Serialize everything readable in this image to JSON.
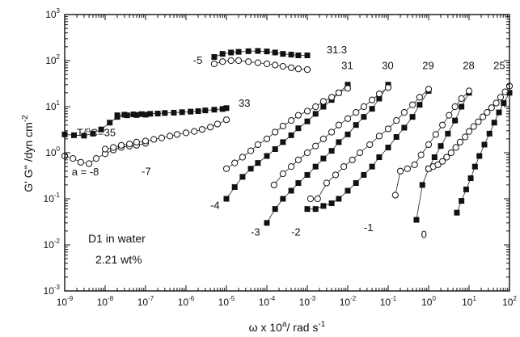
{
  "chart_data": {
    "type": "scatter",
    "x_scale": "log",
    "y_scale": "log",
    "xlim": [
      1e-09,
      100
    ],
    "ylim": [
      0.001,
      1000
    ],
    "xlabel": {
      "base": "ω x 10",
      "sup": "a",
      "rest": "/ rad s",
      "rest_sup": "-1"
    },
    "ylabel": {
      "main": "G' G'' /dyn cm",
      "sup": "-2"
    },
    "x_tick_exponents": [
      "-9",
      "-8",
      "-7",
      "-6",
      "-5",
      "-4",
      "-3",
      "-2",
      "-1",
      "0",
      "1",
      "2"
    ],
    "y_tick_exponents": [
      "-3",
      "-2",
      "-1",
      "0",
      "1",
      "2",
      "3"
    ],
    "tick_base": "10",
    "inset_lines": [
      "D1 in water",
      "2.21 wt%"
    ],
    "marker_styles": {
      "G_prime": "filled-square",
      "G_double_prime": "open-circle"
    },
    "annotations": {
      "temperatures": [
        {
          "text": "T/",
          "sup": "o",
          "rest": "C=35",
          "x": 2e-09,
          "y": 2.3
        },
        {
          "text": "33",
          "x": 2e-05,
          "y": 10
        },
        {
          "text": "31.3",
          "x": 0.003,
          "y": 145
        },
        {
          "text": "31",
          "x": 0.007,
          "y": 65
        },
        {
          "text": "30",
          "x": 0.07,
          "y": 65
        },
        {
          "text": "29",
          "x": 0.7,
          "y": 65
        },
        {
          "text": "28",
          "x": 7,
          "y": 65
        },
        {
          "text": "25",
          "x": 40,
          "y": 65
        }
      ],
      "shift_factors": [
        {
          "text": "a = -8",
          "x": 1.5e-09,
          "y": 0.32
        },
        {
          "text": "-7",
          "x": 8e-08,
          "y": 0.33
        },
        {
          "text": "-5",
          "x": 1.5e-06,
          "y": 85
        },
        {
          "text": "-4",
          "x": 4e-06,
          "y": 0.06
        },
        {
          "text": "-3",
          "x": 4e-05,
          "y": 0.016
        },
        {
          "text": "-2",
          "x": 0.0004,
          "y": 0.016
        },
        {
          "text": "-1",
          "x": 0.025,
          "y": 0.02
        },
        {
          "text": "0",
          "x": 0.65,
          "y": 0.014
        }
      ]
    },
    "series": [
      {
        "name": "",
        "temperature": "35",
        "modulus": "G'",
        "x": [
          1e-09,
          1.7e-09,
          3e-09,
          5e-09,
          8e-09,
          1.3e-08,
          2e-08,
          3.5e-08,
          6e-08,
          1e-07
        ],
        "y": [
          2.5,
          2.4,
          2.35,
          2.6,
          3.2,
          4.5,
          6.0,
          6.5,
          6.6,
          6.7
        ]
      },
      {
        "name": "",
        "temperature": "35",
        "modulus": "G''",
        "x": [
          1e-09,
          1.6e-09,
          2.5e-09,
          4e-09,
          6e-09,
          1e-08,
          1.6e-08,
          2.5e-08,
          4e-08,
          6e-08,
          1e-07
        ],
        "y": [
          0.85,
          0.75,
          0.62,
          0.58,
          0.75,
          0.95,
          1.15,
          1.3,
          1.4,
          1.45,
          1.6
        ]
      },
      {
        "name": "",
        "temperature": "33",
        "modulus": "G'",
        "x": [
          2e-08,
          3e-08,
          5e-08,
          8e-08,
          1.3e-07,
          2e-07,
          3e-07,
          5e-07,
          8e-07,
          1.3e-06,
          2e-06,
          3e-06,
          5e-06,
          8e-06,
          1e-05
        ],
        "y": [
          6.5,
          6.7,
          6.8,
          6.9,
          7.0,
          7.1,
          7.3,
          7.4,
          7.6,
          7.8,
          8.0,
          8.3,
          8.6,
          8.9,
          9.3
        ]
      },
      {
        "name": "",
        "temperature": "33",
        "modulus": "G''",
        "x": [
          1e-08,
          1.6e-08,
          2.5e-08,
          4e-08,
          6e-08,
          1e-07,
          1.6e-07,
          2.5e-07,
          4e-07,
          6e-07,
          1e-06,
          1.6e-06,
          2.5e-06,
          4e-06,
          6e-06,
          1e-05
        ],
        "y": [
          1.2,
          1.3,
          1.45,
          1.55,
          1.7,
          1.8,
          1.95,
          2.1,
          2.3,
          2.5,
          2.7,
          2.9,
          3.2,
          3.6,
          4.2,
          5.2
        ]
      },
      {
        "name": "",
        "temperature": "31.3",
        "modulus": "G'",
        "x": [
          5e-06,
          8e-06,
          1.3e-05,
          2e-05,
          3.5e-05,
          6e-05,
          0.0001,
          0.00016,
          0.00025,
          0.0004,
          0.0006,
          0.001
        ],
        "y": [
          120,
          140,
          150,
          155,
          160,
          162,
          158,
          150,
          140,
          135,
          130,
          130
        ]
      },
      {
        "name": "",
        "temperature": "31.3",
        "modulus": "G''",
        "x": [
          5e-06,
          8e-06,
          1.3e-05,
          2e-05,
          3.5e-05,
          6e-05,
          0.0001,
          0.00016,
          0.00025,
          0.0004,
          0.0006,
          0.001
        ],
        "y": [
          85,
          95,
          100,
          100,
          95,
          90,
          85,
          80,
          75,
          70,
          66,
          64
        ]
      },
      {
        "name": "",
        "temperature": "31",
        "modulus": "G'",
        "x": [
          1e-05,
          1.6e-05,
          2.5e-05,
          4e-05,
          6e-05,
          0.0001,
          0.00016,
          0.00025,
          0.0004,
          0.0006,
          0.001,
          0.0016,
          0.0025,
          0.004,
          0.006,
          0.01
        ],
        "y": [
          0.1,
          0.18,
          0.3,
          0.45,
          0.6,
          0.85,
          1.2,
          1.7,
          2.4,
          3.4,
          4.8,
          7.0,
          10,
          14,
          20,
          30
        ]
      },
      {
        "name": "",
        "temperature": "31",
        "modulus": "G''",
        "x": [
          1e-05,
          1.6e-05,
          2.5e-05,
          4e-05,
          6e-05,
          0.0001,
          0.00016,
          0.00025,
          0.0004,
          0.0006,
          0.001,
          0.0016,
          0.0025,
          0.004,
          0.006,
          0.01
        ],
        "y": [
          0.45,
          0.6,
          0.8,
          1.1,
          1.5,
          2.0,
          2.8,
          3.8,
          5.0,
          6.5,
          8.0,
          10,
          13,
          16,
          20,
          25
        ]
      },
      {
        "name": "",
        "temperature": "30",
        "modulus": "G'",
        "x": [
          0.0001,
          0.00016,
          0.00025,
          0.0004,
          0.0006,
          0.001,
          0.0016,
          0.0025,
          0.004,
          0.006,
          0.01,
          0.016,
          0.025,
          0.04,
          0.06,
          0.1
        ],
        "y": [
          0.03,
          0.06,
          0.1,
          0.15,
          0.22,
          0.33,
          0.5,
          0.75,
          1.1,
          1.7,
          2.5,
          4.0,
          6.0,
          9.0,
          15,
          30
        ]
      },
      {
        "name": "",
        "temperature": "30",
        "modulus": "G''",
        "x": [
          0.00015,
          0.00025,
          0.0004,
          0.0006,
          0.001,
          0.0016,
          0.0025,
          0.004,
          0.006,
          0.01,
          0.016,
          0.025,
          0.04,
          0.06,
          0.1
        ],
        "y": [
          0.2,
          0.35,
          0.5,
          0.7,
          1.0,
          1.4,
          2.0,
          2.8,
          4.0,
          5.5,
          7.5,
          10,
          14,
          19,
          26
        ]
      },
      {
        "name": "",
        "temperature": "29",
        "modulus": "G'",
        "x": [
          0.001,
          0.0016,
          0.0025,
          0.004,
          0.006,
          0.01,
          0.016,
          0.025,
          0.04,
          0.06,
          0.1,
          0.16,
          0.25,
          0.4,
          0.6,
          1
        ],
        "y": [
          0.06,
          0.06,
          0.07,
          0.08,
          0.1,
          0.15,
          0.22,
          0.33,
          0.5,
          0.8,
          1.3,
          2.2,
          3.5,
          6.0,
          11,
          22
        ]
      },
      {
        "name": "",
        "temperature": "29",
        "modulus": "G''",
        "x": [
          0.0012,
          0.0018,
          0.003,
          0.005,
          0.008,
          0.013,
          0.02,
          0.035,
          0.06,
          0.1,
          0.16,
          0.25,
          0.4,
          0.6,
          1
        ],
        "y": [
          0.1,
          0.1,
          0.22,
          0.33,
          0.5,
          0.7,
          1.0,
          1.5,
          2.3,
          3.3,
          5.0,
          7.5,
          11,
          16,
          24
        ]
      },
      {
        "name": "",
        "temperature": "28",
        "modulus": "G'",
        "x": [
          0.5,
          0.7,
          1.0,
          1.4,
          2.0,
          3.0,
          4.5,
          6.5,
          10
        ],
        "y": [
          0.035,
          0.2,
          0.45,
          0.8,
          1.4,
          2.6,
          5.0,
          10,
          20
        ]
      },
      {
        "name": "",
        "temperature": "28",
        "modulus": "G''",
        "x": [
          0.15,
          0.2,
          0.3,
          0.45,
          0.65,
          1.0,
          1.5,
          2.2,
          3.2,
          4.5,
          6.5,
          10
        ],
        "y": [
          0.12,
          0.4,
          0.45,
          0.55,
          0.9,
          1.5,
          2.5,
          4.0,
          6.5,
          10,
          15,
          22
        ]
      },
      {
        "name": "",
        "temperature": "25",
        "modulus": "G'",
        "x": [
          5,
          6.5,
          8.5,
          11,
          14,
          18,
          24,
          32,
          42,
          55,
          72,
          100
        ],
        "y": [
          0.05,
          0.09,
          0.16,
          0.28,
          0.5,
          0.85,
          1.5,
          2.6,
          4.5,
          7.5,
          12,
          20
        ]
      },
      {
        "name": "",
        "temperature": "25",
        "modulus": "G''",
        "x": [
          1.0,
          1.3,
          1.7,
          2.2,
          2.8,
          3.6,
          4.7,
          6,
          8,
          10,
          13,
          17,
          22,
          28,
          36,
          47,
          60,
          78,
          100
        ],
        "y": [
          0.45,
          0.5,
          0.55,
          0.65,
          0.8,
          1.0,
          1.3,
          1.7,
          2.2,
          2.9,
          3.7,
          4.7,
          6.0,
          7.5,
          9.5,
          12,
          16,
          21,
          28
        ]
      }
    ]
  }
}
